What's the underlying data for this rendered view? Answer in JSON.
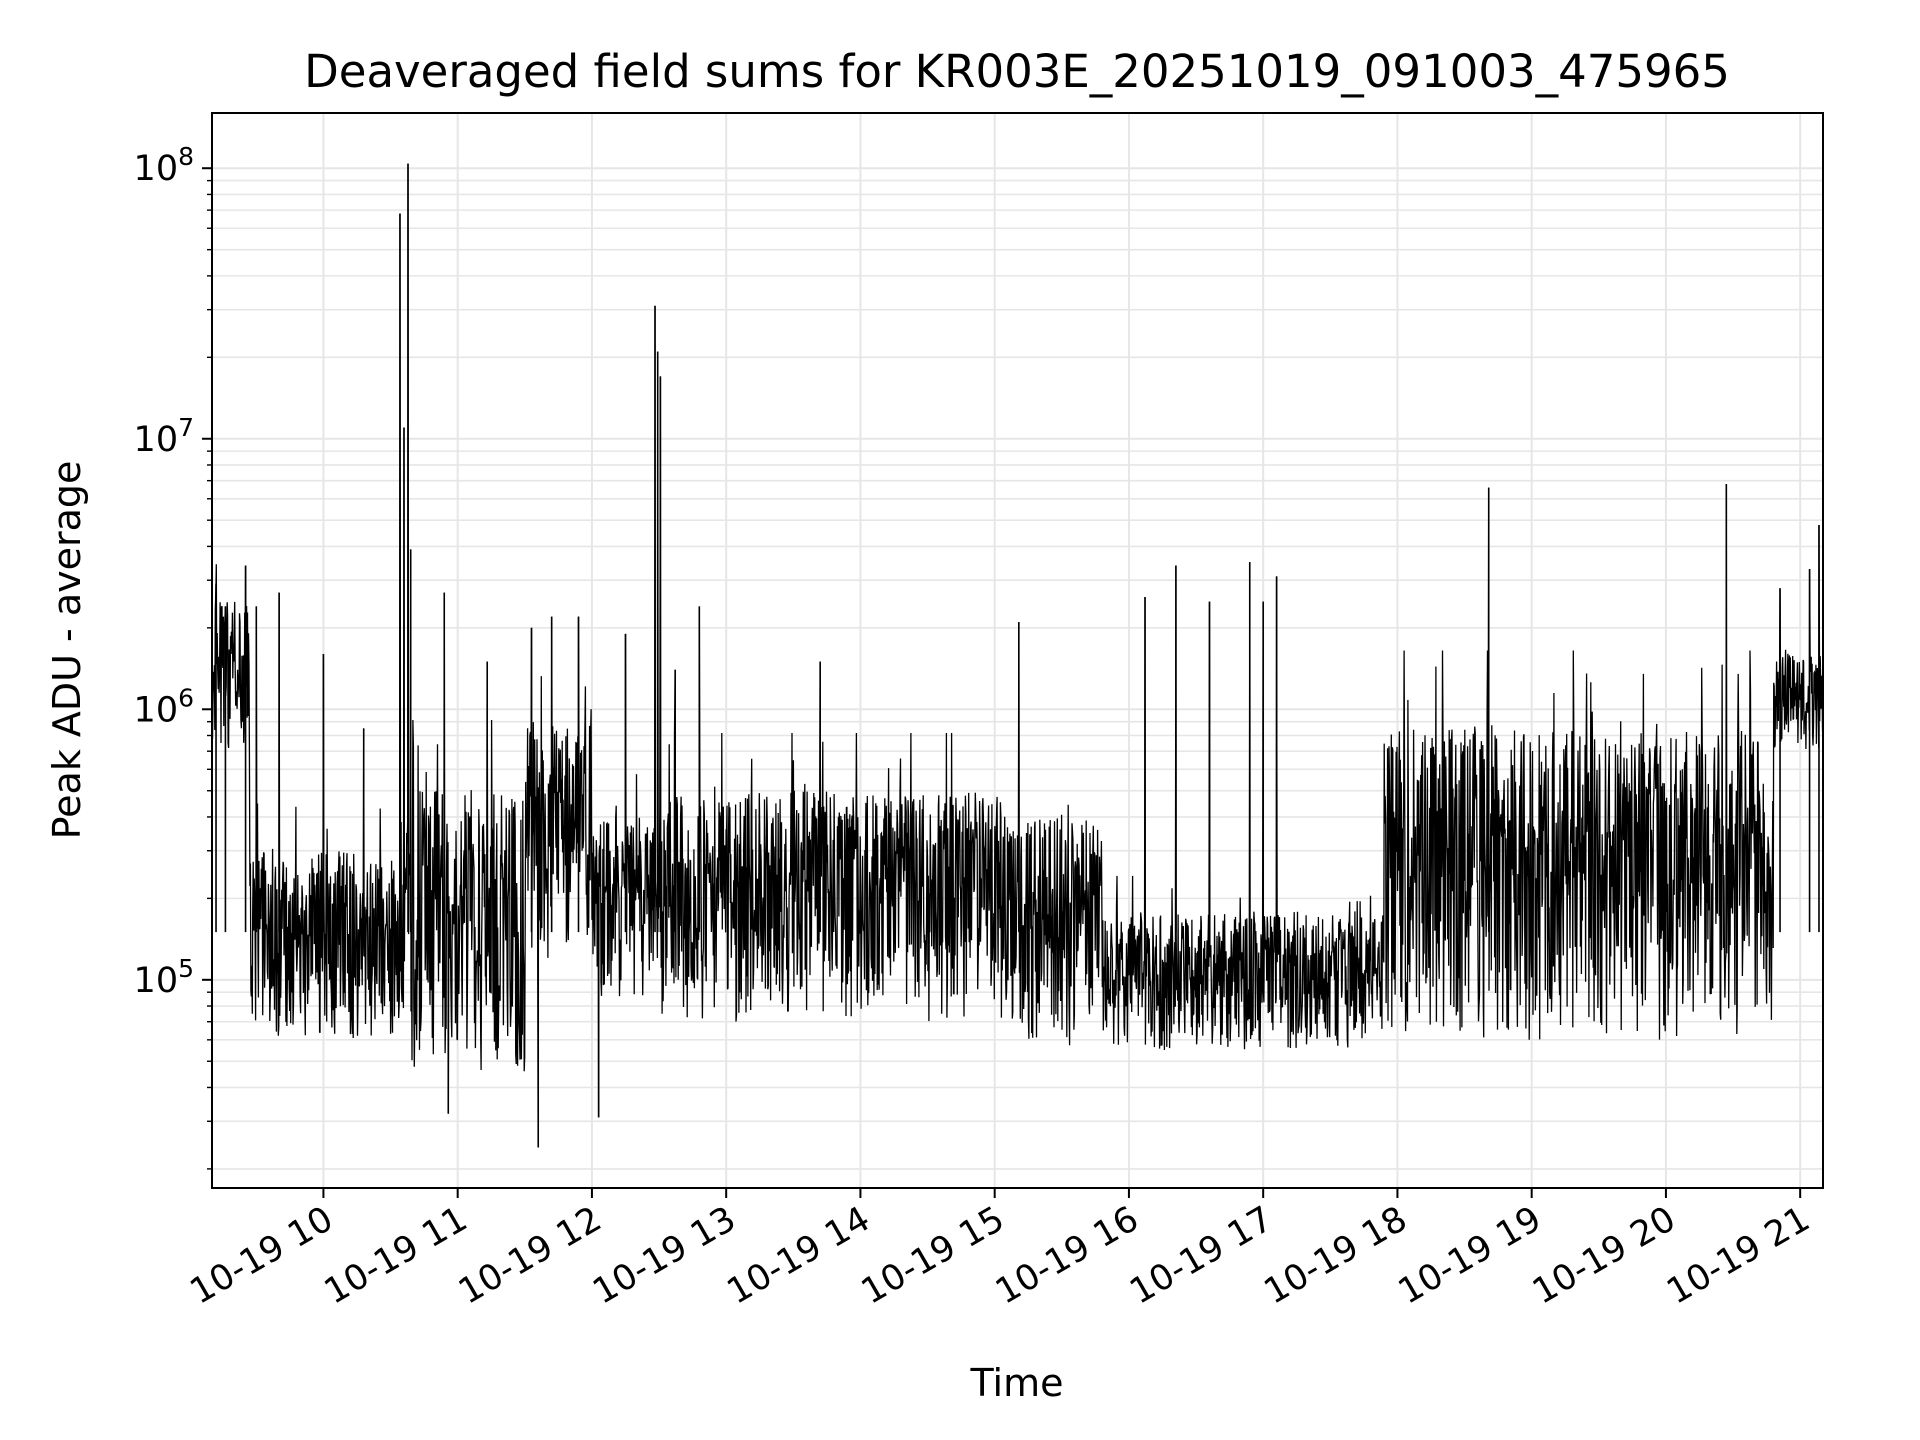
{
  "chart_data": {
    "type": "line",
    "title": "Deaveraged field sums for KR003E_20251019_091003_475965",
    "xlabel": "Time",
    "ylabel": "Peak ADU - average",
    "yscale": "log",
    "ylim": [
      17000,
      160000000
    ],
    "xlim_hours": [
      9.17,
      21.17
    ],
    "grid": true,
    "line_color": "#000000",
    "grid_color": "#e6e6e6",
    "x_ticks": [
      {
        "hour": 10,
        "label": "10-19 10"
      },
      {
        "hour": 11,
        "label": "10-19 11"
      },
      {
        "hour": 12,
        "label": "10-19 12"
      },
      {
        "hour": 13,
        "label": "10-19 13"
      },
      {
        "hour": 14,
        "label": "10-19 14"
      },
      {
        "hour": 15,
        "label": "10-19 15"
      },
      {
        "hour": 16,
        "label": "10-19 16"
      },
      {
        "hour": 17,
        "label": "10-19 17"
      },
      {
        "hour": 18,
        "label": "10-19 18"
      },
      {
        "hour": 19,
        "label": "10-19 19"
      },
      {
        "hour": 20,
        "label": "10-19 20"
      },
      {
        "hour": 21,
        "label": "10-19 21"
      }
    ],
    "y_ticks": [
      {
        "value": 100000,
        "base": "10",
        "exp": "5"
      },
      {
        "value": 1000000,
        "base": "10",
        "exp": "6"
      },
      {
        "value": 10000000,
        "base": "10",
        "exp": "7"
      },
      {
        "value": 100000000,
        "base": "10",
        "exp": "8"
      }
    ],
    "baseline_segments": [
      {
        "t0": 9.17,
        "t1": 9.45,
        "low": 700000,
        "high": 2500000
      },
      {
        "t0": 9.45,
        "t1": 10.6,
        "low": 60000,
        "high": 300000
      },
      {
        "t0": 10.6,
        "t1": 11.5,
        "low": 45000,
        "high": 500000
      },
      {
        "t0": 11.5,
        "t1": 12.0,
        "low": 120000,
        "high": 900000
      },
      {
        "t0": 12.0,
        "t1": 12.5,
        "low": 80000,
        "high": 400000
      },
      {
        "t0": 12.5,
        "t1": 15.1,
        "low": 70000,
        "high": 500000
      },
      {
        "t0": 15.1,
        "t1": 15.8,
        "low": 55000,
        "high": 400000
      },
      {
        "t0": 15.8,
        "t1": 17.9,
        "low": 55000,
        "high": 180000
      },
      {
        "t0": 17.9,
        "t1": 20.8,
        "low": 60000,
        "high": 850000
      },
      {
        "t0": 20.8,
        "t1": 21.17,
        "low": 700000,
        "high": 1600000
      }
    ],
    "spikes": [
      {
        "t": 9.2,
        "value": 2900000
      },
      {
        "t": 9.27,
        "value": 2400000
      },
      {
        "t": 9.42,
        "value": 3400000
      },
      {
        "t": 9.5,
        "value": 2400000
      },
      {
        "t": 9.67,
        "value": 2700000
      },
      {
        "t": 10.0,
        "value": 1600000
      },
      {
        "t": 10.3,
        "value": 850000
      },
      {
        "t": 10.57,
        "value": 68000000
      },
      {
        "t": 10.6,
        "value": 11000000
      },
      {
        "t": 10.63,
        "value": 104000000
      },
      {
        "t": 10.65,
        "value": 3900000
      },
      {
        "t": 10.9,
        "value": 2700000
      },
      {
        "t": 10.93,
        "value": 32000
      },
      {
        "t": 11.22,
        "value": 1500000
      },
      {
        "t": 11.55,
        "value": 2000000
      },
      {
        "t": 11.6,
        "value": 24000
      },
      {
        "t": 11.7,
        "value": 2200000
      },
      {
        "t": 11.9,
        "value": 2200000
      },
      {
        "t": 12.05,
        "value": 31000
      },
      {
        "t": 12.25,
        "value": 1900000
      },
      {
        "t": 12.47,
        "value": 31000000
      },
      {
        "t": 12.49,
        "value": 21000000
      },
      {
        "t": 12.51,
        "value": 17000000
      },
      {
        "t": 12.62,
        "value": 1400000
      },
      {
        "t": 12.8,
        "value": 2400000
      },
      {
        "t": 13.7,
        "value": 1500000
      },
      {
        "t": 15.18,
        "value": 2100000
      },
      {
        "t": 16.12,
        "value": 2600000
      },
      {
        "t": 16.35,
        "value": 3400000
      },
      {
        "t": 16.6,
        "value": 2500000
      },
      {
        "t": 16.9,
        "value": 3500000
      },
      {
        "t": 17.0,
        "value": 2500000
      },
      {
        "t": 17.1,
        "value": 3100000
      },
      {
        "t": 18.68,
        "value": 6600000
      },
      {
        "t": 20.45,
        "value": 6800000
      },
      {
        "t": 20.85,
        "value": 2800000
      },
      {
        "t": 21.07,
        "value": 3300000
      },
      {
        "t": 21.14,
        "value": 4800000
      }
    ]
  }
}
